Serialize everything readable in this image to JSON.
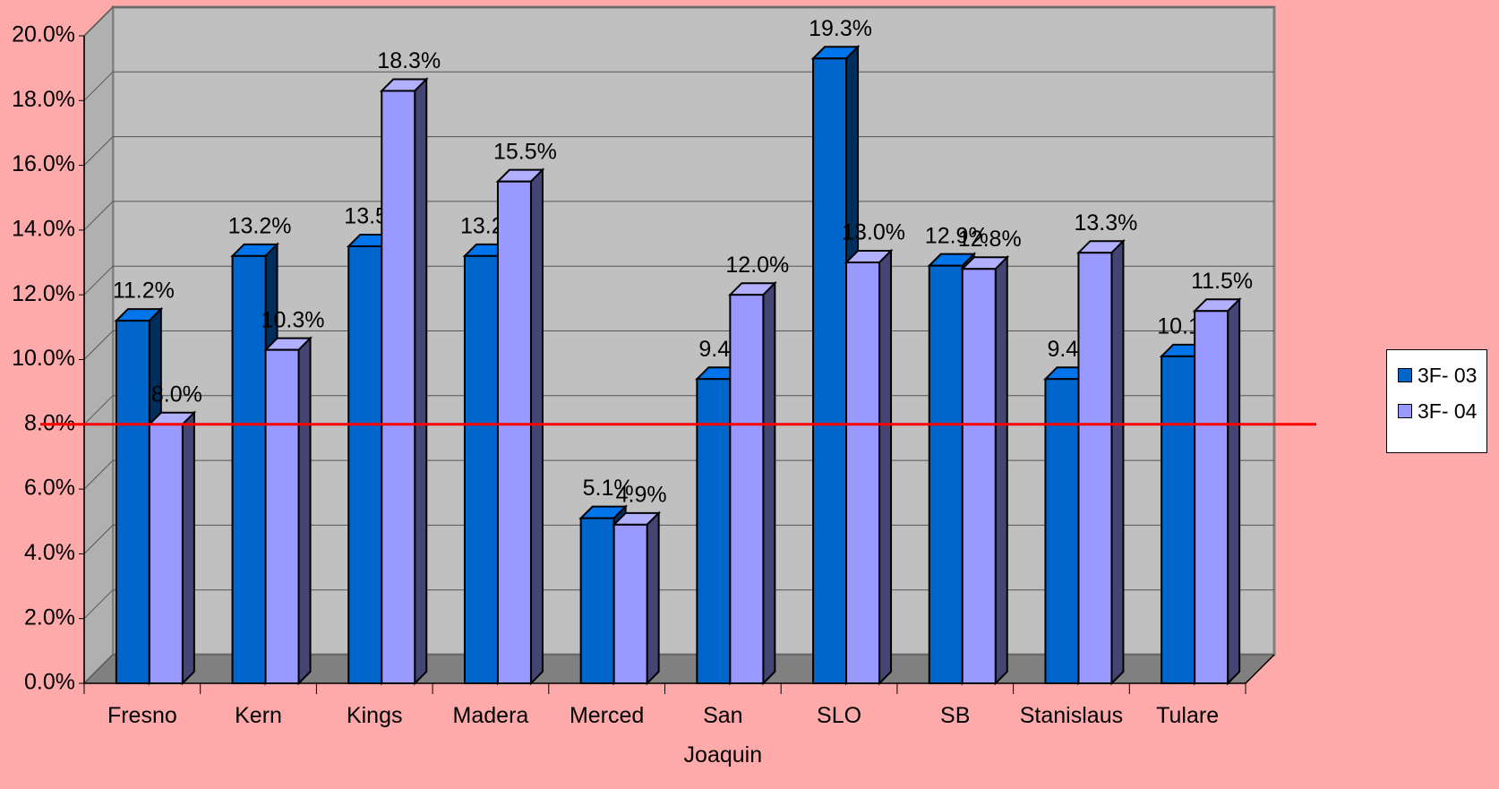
{
  "chart_data": {
    "type": "bar3d",
    "categories": [
      "Fresno",
      "Kern",
      "Kings",
      "Madera",
      "Merced",
      "San Joaquin",
      "SLO",
      "SB",
      "Stanislaus",
      "Tulare"
    ],
    "series": [
      {
        "name": "3F- 03",
        "color": "#0066cc",
        "values": [
          11.2,
          13.2,
          13.5,
          13.2,
          5.1,
          9.4,
          19.3,
          12.9,
          9.4,
          10.1
        ],
        "value_labels": [
          "11.2%",
          "13.2%",
          "13.5%",
          "13.2%",
          "5.1%",
          "9.4%",
          "19.3%",
          "12.9%",
          "9.4%",
          "10.1%"
        ]
      },
      {
        "name": "3F- 04",
        "color": "#9999ff",
        "values": [
          8.0,
          10.3,
          18.3,
          15.5,
          4.9,
          12.0,
          13.0,
          12.8,
          13.3,
          11.5
        ],
        "value_labels": [
          "8.0%",
          "10.3%",
          "18.3%",
          "15.5%",
          "4.9%",
          "12.0%",
          "13.0%",
          "12.8%",
          "13.3%",
          "11.5%"
        ]
      }
    ],
    "ylim": [
      0,
      20
    ],
    "yticks": [
      {
        "value": 0,
        "label": "0.0%"
      },
      {
        "value": 2,
        "label": "2.0%"
      },
      {
        "value": 4,
        "label": "4.0%"
      },
      {
        "value": 6,
        "label": "6.0%"
      },
      {
        "value": 8,
        "label": "8.0%"
      },
      {
        "value": 10,
        "label": "10.0%"
      },
      {
        "value": 12,
        "label": "12.0%"
      },
      {
        "value": 14,
        "label": "14.0%"
      },
      {
        "value": 16,
        "label": "16.0%"
      },
      {
        "value": 18,
        "label": "18.0%"
      },
      {
        "value": 20,
        "label": "20.0%"
      }
    ],
    "grid": true,
    "reference_line": {
      "value": 8,
      "color": "#ff0000"
    },
    "legend": "right"
  }
}
